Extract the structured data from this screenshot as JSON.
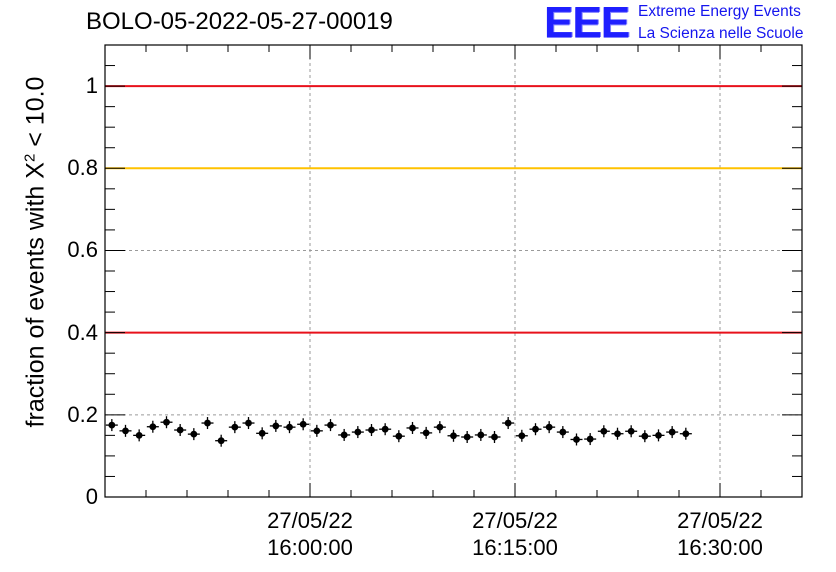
{
  "chart_data": {
    "type": "scatter",
    "title": "BOLO-05-2022-05-27-00019",
    "logo": {
      "mark": "EEE",
      "line1": "Extreme Energy Events",
      "line2": "La Scienza nelle Scuole"
    },
    "ylabel": {
      "prefix": "fraction of events with X",
      "sup": "2",
      "suffix": " < 10.0"
    },
    "ylim": [
      0,
      1.1
    ],
    "y_ticks": [
      {
        "value": 0,
        "label": "0"
      },
      {
        "value": 0.2,
        "label": "0.2"
      },
      {
        "value": 0.4,
        "label": "0.4"
      },
      {
        "value": 0.6,
        "label": "0.6"
      },
      {
        "value": 0.8,
        "label": "0.8"
      },
      {
        "value": 1,
        "label": "1"
      }
    ],
    "xlim_minutes_from_1600": [
      -15,
      36
    ],
    "x_ticks": [
      {
        "minutes_from_1600": 0,
        "date": "27/05/22",
        "time": "16:00:00"
      },
      {
        "minutes_from_1600": 15,
        "date": "27/05/22",
        "time": "16:15:00"
      },
      {
        "minutes_from_1600": 30,
        "date": "27/05/22",
        "time": "16:30:00"
      }
    ],
    "grid": true,
    "reference_lines": [
      {
        "y": 1.0,
        "color": "#e8111b"
      },
      {
        "y": 0.8,
        "color": "#ffc200"
      },
      {
        "y": 0.4,
        "color": "#e8111b"
      }
    ],
    "series": [
      {
        "marker_color": "#000000",
        "points": [
          {
            "x": -14.5,
            "y": 0.175
          },
          {
            "x": -13.5,
            "y": 0.161
          },
          {
            "x": -12.5,
            "y": 0.15
          },
          {
            "x": -11.5,
            "y": 0.171
          },
          {
            "x": -10.5,
            "y": 0.182
          },
          {
            "x": -9.5,
            "y": 0.163
          },
          {
            "x": -8.5,
            "y": 0.153
          },
          {
            "x": -7.5,
            "y": 0.18
          },
          {
            "x": -6.5,
            "y": 0.137
          },
          {
            "x": -5.5,
            "y": 0.17
          },
          {
            "x": -4.5,
            "y": 0.18
          },
          {
            "x": -3.5,
            "y": 0.155
          },
          {
            "x": -2.5,
            "y": 0.173
          },
          {
            "x": -1.5,
            "y": 0.17
          },
          {
            "x": -0.5,
            "y": 0.177
          },
          {
            "x": 0.5,
            "y": 0.161
          },
          {
            "x": 1.5,
            "y": 0.175
          },
          {
            "x": 2.5,
            "y": 0.151
          },
          {
            "x": 3.5,
            "y": 0.158
          },
          {
            "x": 4.5,
            "y": 0.163
          },
          {
            "x": 5.5,
            "y": 0.165
          },
          {
            "x": 6.5,
            "y": 0.148
          },
          {
            "x": 7.5,
            "y": 0.168
          },
          {
            "x": 8.5,
            "y": 0.156
          },
          {
            "x": 9.5,
            "y": 0.17
          },
          {
            "x": 10.5,
            "y": 0.149
          },
          {
            "x": 11.5,
            "y": 0.146
          },
          {
            "x": 12.5,
            "y": 0.151
          },
          {
            "x": 13.5,
            "y": 0.146
          },
          {
            "x": 14.5,
            "y": 0.18
          },
          {
            "x": 15.5,
            "y": 0.149
          },
          {
            "x": 16.5,
            "y": 0.165
          },
          {
            "x": 17.5,
            "y": 0.17
          },
          {
            "x": 18.5,
            "y": 0.158
          },
          {
            "x": 19.5,
            "y": 0.14
          },
          {
            "x": 20.5,
            "y": 0.141
          },
          {
            "x": 21.5,
            "y": 0.16
          },
          {
            "x": 22.5,
            "y": 0.154
          },
          {
            "x": 23.5,
            "y": 0.16
          },
          {
            "x": 24.5,
            "y": 0.148
          },
          {
            "x": 25.5,
            "y": 0.15
          },
          {
            "x": 26.5,
            "y": 0.158
          },
          {
            "x": 27.5,
            "y": 0.154
          }
        ]
      }
    ]
  }
}
